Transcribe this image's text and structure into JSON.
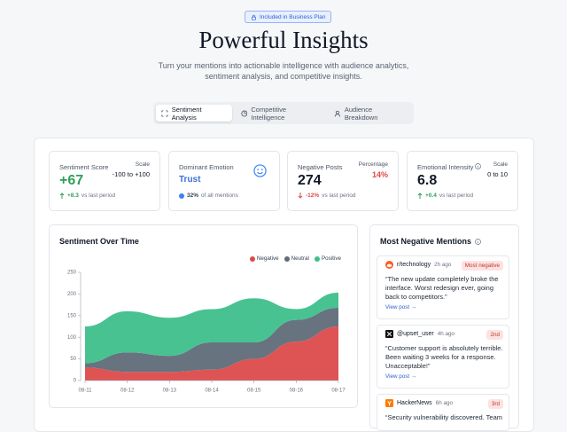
{
  "badge": "Included in Business Plan",
  "header": {
    "title": "Powerful Insights",
    "subtitle": "Turn your mentions into actionable intelligence with audience analytics, sentiment analysis, and competitive insights."
  },
  "tabs": [
    "Sentiment Analysis",
    "Competitive Intelligence",
    "Audience Breakdown"
  ],
  "stats": [
    {
      "label": "Sentiment Score",
      "aside_label": "Scale",
      "aside_value": "-100 to +100",
      "value": "+67",
      "change": "+8.3",
      "note": "vs last period"
    },
    {
      "label": "Dominant Emotion",
      "value": "Trust",
      "detail": "32%",
      "note": "of all mentions"
    },
    {
      "label": "Negative Posts",
      "aside_label": "Percentage",
      "aside_value": "14%",
      "value": "274",
      "change": "-12%",
      "note": "vs last period"
    },
    {
      "label": "Emotional Intensity",
      "aside_label": "Scale",
      "aside_value": "0 to 10",
      "value": "6.8",
      "change": "+0.4",
      "note": "vs last period"
    }
  ],
  "chart": {
    "type": "area",
    "stacked": true,
    "title": "Sentiment Over Time",
    "categories": [
      "08-11",
      "08-12",
      "08-13",
      "08-14",
      "08-15",
      "08-16",
      "08-17"
    ],
    "series": [
      {
        "name": "Negative",
        "color": "#dc4b4b",
        "values": [
          30,
          20,
          20,
          25,
          50,
          90,
          125
        ]
      },
      {
        "name": "Neutral",
        "color": "#5f6b78",
        "values": [
          10,
          45,
          37,
          63,
          38,
          50,
          43
        ]
      },
      {
        "name": "Positive",
        "color": "#3fbf8c",
        "values": [
          85,
          95,
          88,
          77,
          102,
          25,
          35
        ]
      }
    ],
    "ylim": [
      0,
      250
    ],
    "yticks": [
      0,
      50,
      100,
      150,
      200,
      250
    ]
  },
  "mentions_panel": {
    "title": "Most Negative Mentions",
    "mentions": [
      {
        "source": "r/technology",
        "time": "2h ago",
        "rank": "Most negative",
        "text": "“The new update completely broke the interface. Worst redesign ever, going back to competitors.”",
        "link": "View post →"
      },
      {
        "source": "@upset_user",
        "time": "4h ago",
        "rank": "2nd",
        "text": "“Customer support is absolutely terrible. Been waiting 3 weeks for a response. Unacceptable!”",
        "link": "View post →"
      },
      {
        "source": "HackerNews",
        "time": "6h ago",
        "rank": "3rd",
        "text": "“Security vulnerability discovered. Team"
      }
    ]
  }
}
